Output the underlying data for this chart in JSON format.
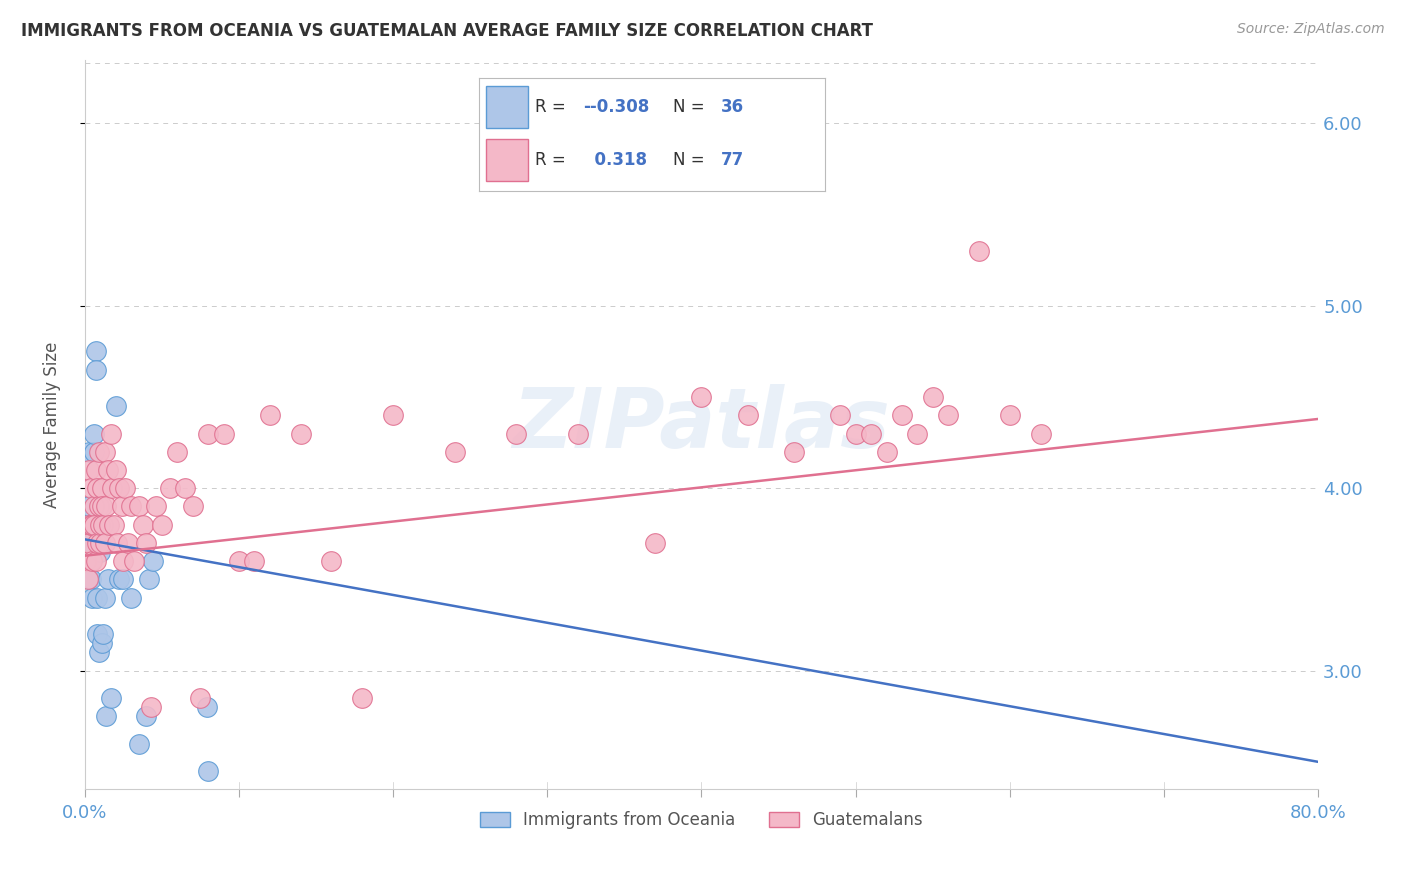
{
  "title": "IMMIGRANTS FROM OCEANIA VS GUATEMALAN AVERAGE FAMILY SIZE CORRELATION CHART",
  "source": "Source: ZipAtlas.com",
  "ylabel": "Average Family Size",
  "xlim": [
    0.0,
    0.8
  ],
  "ylim": [
    2.35,
    6.35
  ],
  "yticks": [
    3.0,
    4.0,
    5.0,
    6.0
  ],
  "xticks": [
    0.0,
    0.1,
    0.2,
    0.3,
    0.4,
    0.5,
    0.6,
    0.7,
    0.8
  ],
  "xticklabels_visible": [
    "0.0%",
    "",
    "",
    "",
    "",
    "",
    "",
    "",
    "80.0%"
  ],
  "background_color": "#ffffff",
  "grid_color": "#cccccc",
  "axis_color": "#5b9bd5",
  "blue_fill": "#aec6e8",
  "blue_edge": "#5b9bd5",
  "pink_fill": "#f4b8c8",
  "pink_edge": "#e07090",
  "trend_blue": [
    0.0,
    0.8,
    3.72,
    2.5
  ],
  "trend_pink": [
    0.0,
    0.8,
    3.63,
    4.38
  ],
  "watermark": "ZIPatlas",
  "legend_R_blue": "-0.308",
  "legend_N_blue": "36",
  "legend_R_pink": "0.318",
  "legend_N_pink": "77",
  "blue_x": [
    0.001,
    0.002,
    0.002,
    0.003,
    0.003,
    0.003,
    0.004,
    0.004,
    0.004,
    0.005,
    0.005,
    0.006,
    0.006,
    0.007,
    0.007,
    0.007,
    0.008,
    0.008,
    0.009,
    0.01,
    0.011,
    0.012,
    0.013,
    0.014,
    0.015,
    0.017,
    0.02,
    0.022,
    0.025,
    0.03,
    0.035,
    0.04,
    0.042,
    0.044,
    0.079,
    0.08
  ],
  "blue_y": [
    3.6,
    3.8,
    3.7,
    3.5,
    3.9,
    4.2,
    3.6,
    3.5,
    3.8,
    3.7,
    3.4,
    4.2,
    4.3,
    4.75,
    4.65,
    3.8,
    3.4,
    3.2,
    3.1,
    3.65,
    3.15,
    3.2,
    3.4,
    2.75,
    3.5,
    2.85,
    4.45,
    3.5,
    3.5,
    3.4,
    2.6,
    2.75,
    3.5,
    3.6,
    2.8,
    2.45
  ],
  "pink_x": [
    0.001,
    0.002,
    0.002,
    0.003,
    0.003,
    0.004,
    0.004,
    0.005,
    0.005,
    0.006,
    0.006,
    0.007,
    0.007,
    0.008,
    0.008,
    0.009,
    0.009,
    0.01,
    0.01,
    0.011,
    0.011,
    0.012,
    0.013,
    0.013,
    0.014,
    0.015,
    0.016,
    0.017,
    0.018,
    0.019,
    0.02,
    0.021,
    0.022,
    0.024,
    0.025,
    0.026,
    0.028,
    0.03,
    0.032,
    0.035,
    0.038,
    0.04,
    0.043,
    0.046,
    0.05,
    0.055,
    0.06,
    0.065,
    0.07,
    0.075,
    0.08,
    0.09,
    0.1,
    0.11,
    0.12,
    0.14,
    0.16,
    0.18,
    0.2,
    0.24,
    0.28,
    0.32,
    0.37,
    0.4,
    0.43,
    0.46,
    0.49,
    0.5,
    0.51,
    0.52,
    0.53,
    0.54,
    0.55,
    0.56,
    0.58,
    0.6,
    0.62
  ],
  "pink_y": [
    3.6,
    3.8,
    3.5,
    3.7,
    4.1,
    3.8,
    4.0,
    3.6,
    3.8,
    3.9,
    3.8,
    4.1,
    3.6,
    4.0,
    3.7,
    3.9,
    4.2,
    3.7,
    3.8,
    4.0,
    3.9,
    3.8,
    4.2,
    3.7,
    3.9,
    4.1,
    3.8,
    4.3,
    4.0,
    3.8,
    4.1,
    3.7,
    4.0,
    3.9,
    3.6,
    4.0,
    3.7,
    3.9,
    3.6,
    3.9,
    3.8,
    3.7,
    2.8,
    3.9,
    3.8,
    4.0,
    4.2,
    4.0,
    3.9,
    2.85,
    4.3,
    4.3,
    3.6,
    3.6,
    4.4,
    4.3,
    3.6,
    2.85,
    4.4,
    4.2,
    4.3,
    4.3,
    3.7,
    4.5,
    4.4,
    4.2,
    4.4,
    4.3,
    4.3,
    4.2,
    4.4,
    4.3,
    4.5,
    4.4,
    5.3,
    4.4,
    4.3
  ]
}
